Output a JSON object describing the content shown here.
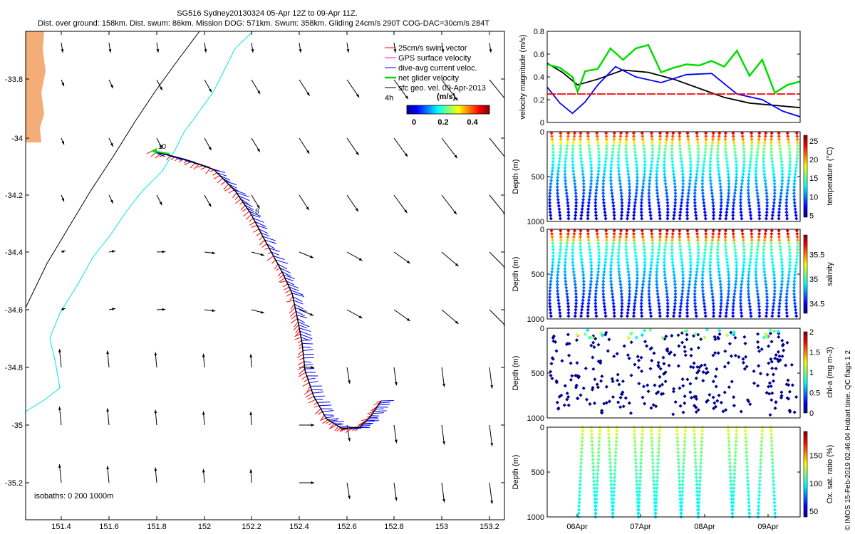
{
  "header": {
    "line1": "SG516 Sydney20130324 05-Apr 12Z to 09-Apr 11Z.",
    "line2": "Dist. over ground: 158km. Dist. swum: 86km. Mission DOG: 571km. Swum: 358km. Gliding 24cm/s 290T COG-DAC=30cm/s 284T"
  },
  "legend": {
    "items": [
      {
        "label": "25cm/s swim vector",
        "color": "#ff0000"
      },
      {
        "label": "GPS surface velocity",
        "color": "#ff00ff"
      },
      {
        "label": "dive-avg current veloc.",
        "color": "#0000ff"
      },
      {
        "label": "net glider velocity",
        "color": "#00dd00"
      },
      {
        "label": "sfc geo. vel. 09-Apr-2013",
        "color": "#000000"
      }
    ],
    "scale_note": "4h",
    "colorbar_title": "(m/s)",
    "colorbar_ticks": [
      "0",
      "0.2",
      "0.4"
    ]
  },
  "map": {
    "x_ticks": [
      "151.4",
      "151.6",
      "151.8",
      "152",
      "152.2",
      "152.4",
      "152.6",
      "152.8",
      "153",
      "153.2"
    ],
    "y_ticks": [
      "-33.8",
      "-34",
      "-34.2",
      "-34.4",
      "-34.6",
      "-34.8",
      "-35",
      "-35.2"
    ],
    "isobaths_note": "isobaths: 0   200   1000m",
    "track_labels": [
      "10",
      "8"
    ],
    "colors": {
      "land": "#f5ad78",
      "isobath_200": "#00e5ee",
      "isobath_1000": "#000000",
      "track": "#000000"
    }
  },
  "chart_data": [
    {
      "type": "line",
      "ylabel": "velocity magnitude (m/s)",
      "ylim": [
        0,
        0.8
      ],
      "y_ticks": [
        "0",
        "0.2",
        "0.4",
        "0.6",
        "0.8"
      ],
      "series": [
        {
          "color": "#000000",
          "x": [
            0,
            0.06,
            0.12,
            0.2,
            0.3,
            0.4,
            0.5,
            0.6,
            0.7,
            0.8,
            0.9,
            1.0
          ],
          "values": [
            0.52,
            0.44,
            0.33,
            0.38,
            0.46,
            0.44,
            0.38,
            0.3,
            0.22,
            0.17,
            0.15,
            0.13
          ]
        },
        {
          "color": "#0000ff",
          "x": [
            0,
            0.05,
            0.1,
            0.15,
            0.2,
            0.27,
            0.35,
            0.45,
            0.55,
            0.65,
            0.75,
            0.85,
            0.93,
            1.0
          ],
          "values": [
            0.31,
            0.17,
            0.08,
            0.18,
            0.33,
            0.49,
            0.4,
            0.35,
            0.42,
            0.43,
            0.25,
            0.2,
            0.1,
            0.05
          ]
        },
        {
          "color": "#00dd00",
          "x": [
            0,
            0.05,
            0.1,
            0.12,
            0.15,
            0.2,
            0.25,
            0.3,
            0.35,
            0.4,
            0.45,
            0.5,
            0.55,
            0.6,
            0.65,
            0.7,
            0.75,
            0.8,
            0.85,
            0.9,
            0.95,
            1.0
          ],
          "values": [
            0.51,
            0.48,
            0.4,
            0.27,
            0.45,
            0.47,
            0.65,
            0.55,
            0.65,
            0.68,
            0.44,
            0.48,
            0.51,
            0.5,
            0.54,
            0.49,
            0.63,
            0.41,
            0.55,
            0.26,
            0.33,
            0.36
          ]
        },
        {
          "color": "#ff0000",
          "style": "dashed",
          "x": [
            0,
            1.0
          ],
          "values": [
            0.25,
            0.25
          ]
        }
      ]
    },
    {
      "type": "scatter",
      "ylabel": "Depth (m)",
      "colorbar_label": "temperature (°C)",
      "colorbar_ticks": [
        "5",
        "10",
        "15",
        "20",
        "25"
      ],
      "y_ticks": [
        "0",
        "500",
        "1000"
      ],
      "profiles": 33
    },
    {
      "type": "scatter",
      "ylabel": "Depth (m)",
      "colorbar_label": "salinity",
      "colorbar_ticks": [
        "34.5",
        "35",
        "35.5"
      ],
      "y_ticks": [
        "0",
        "500",
        "1000"
      ],
      "profiles": 33
    },
    {
      "type": "scatter",
      "ylabel": "Depth (m)",
      "colorbar_label": "chl-a (mg m-3)",
      "colorbar_ticks": [
        "0",
        "0.5",
        "1",
        "1.5",
        "2"
      ],
      "y_ticks": [
        "0",
        "500",
        "1000"
      ],
      "profiles": 33
    },
    {
      "type": "scatter",
      "ylabel": "Depth (m)",
      "colorbar_label": "Ox. sat. ratio (%)",
      "colorbar_ticks": [
        "50",
        "100",
        "150"
      ],
      "y_ticks": [
        "0",
        "500",
        "1000"
      ],
      "profiles": 33
    }
  ],
  "time_axis": {
    "ticks": [
      "06Apr",
      "07Apr",
      "08Apr",
      "09Apr"
    ]
  },
  "side_note": "© IMOS 15-Feb-2019 02:46:04 Hobart time. QC flags 1  2"
}
